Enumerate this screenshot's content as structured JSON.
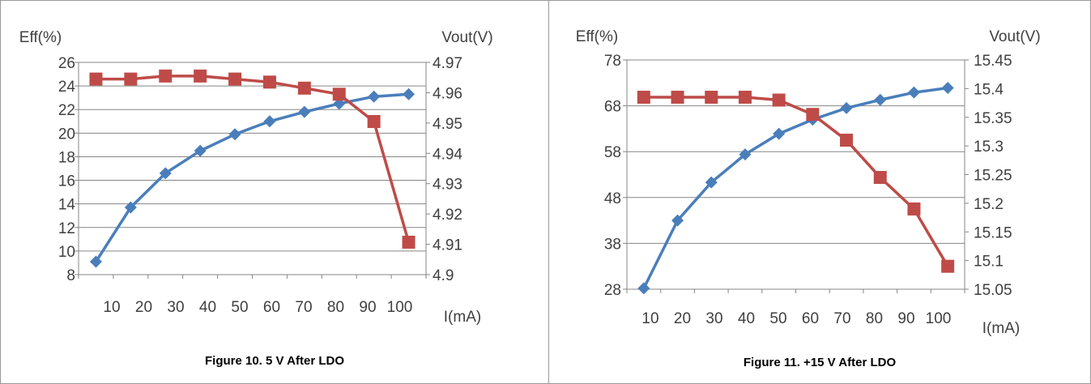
{
  "colors": {
    "eff": "#4a7ebb",
    "vout": "#be4b48",
    "grid": "#868686",
    "axis": "#868686"
  },
  "figures": [
    {
      "caption": "Figure 10. 5 V After LDO"
    },
    {
      "caption": "Figure 11. +15 V After LDO"
    }
  ],
  "chart_data": [
    {
      "type": "line",
      "title": "",
      "xlabel": "I(mA)",
      "ylabel": "Eff(%)",
      "y2label": "Vout(V)",
      "categories": [
        "10",
        "20",
        "30",
        "40",
        "50",
        "60",
        "70",
        "80",
        "90",
        "100"
      ],
      "ylim": [
        8,
        26
      ],
      "yticks": [
        "8",
        "10",
        "12",
        "14",
        "16",
        "18",
        "20",
        "22",
        "24",
        "26"
      ],
      "y2lim": [
        4.9,
        4.97
      ],
      "y2ticks": [
        "4.9",
        "4.91",
        "4.92",
        "4.93",
        "4.94",
        "4.95",
        "4.96",
        "4.97"
      ],
      "grid": true,
      "series": [
        {
          "name": "",
          "axis": "left",
          "marker": "diamond",
          "values": [
            9.1,
            13.7,
            16.6,
            18.5,
            19.9,
            21.0,
            21.8,
            22.5,
            23.1,
            23.3
          ]
        },
        {
          "name": "",
          "axis": "right",
          "marker": "square",
          "values": [
            4.9645,
            4.9645,
            4.9655,
            4.9655,
            4.9645,
            4.9635,
            4.9615,
            4.9595,
            4.9505,
            4.9107
          ]
        }
      ]
    },
    {
      "type": "line",
      "title": "",
      "xlabel": "I(mA)",
      "ylabel": "Eff(%)",
      "y2label": "Vout(V)",
      "categories": [
        "10",
        "20",
        "30",
        "40",
        "50",
        "60",
        "70",
        "80",
        "90",
        "100"
      ],
      "ylim": [
        28,
        78
      ],
      "yticks": [
        "28",
        "38",
        "48",
        "58",
        "68",
        "78"
      ],
      "y2lim": [
        15.05,
        15.45
      ],
      "y2ticks": [
        "15.05",
        "15.1",
        "15.15",
        "15.2",
        "15.25",
        "15.3",
        "15.35",
        "15.4",
        "15.45"
      ],
      "grid": true,
      "series": [
        {
          "name": "",
          "axis": "left",
          "marker": "diamond",
          "values": [
            28.2,
            43.0,
            51.3,
            57.4,
            61.9,
            65.0,
            67.5,
            69.3,
            70.9,
            71.9
          ]
        },
        {
          "name": "",
          "axis": "right",
          "marker": "square",
          "values": [
            15.385,
            15.385,
            15.385,
            15.385,
            15.38,
            15.355,
            15.31,
            15.245,
            15.19,
            15.09
          ]
        }
      ]
    }
  ]
}
